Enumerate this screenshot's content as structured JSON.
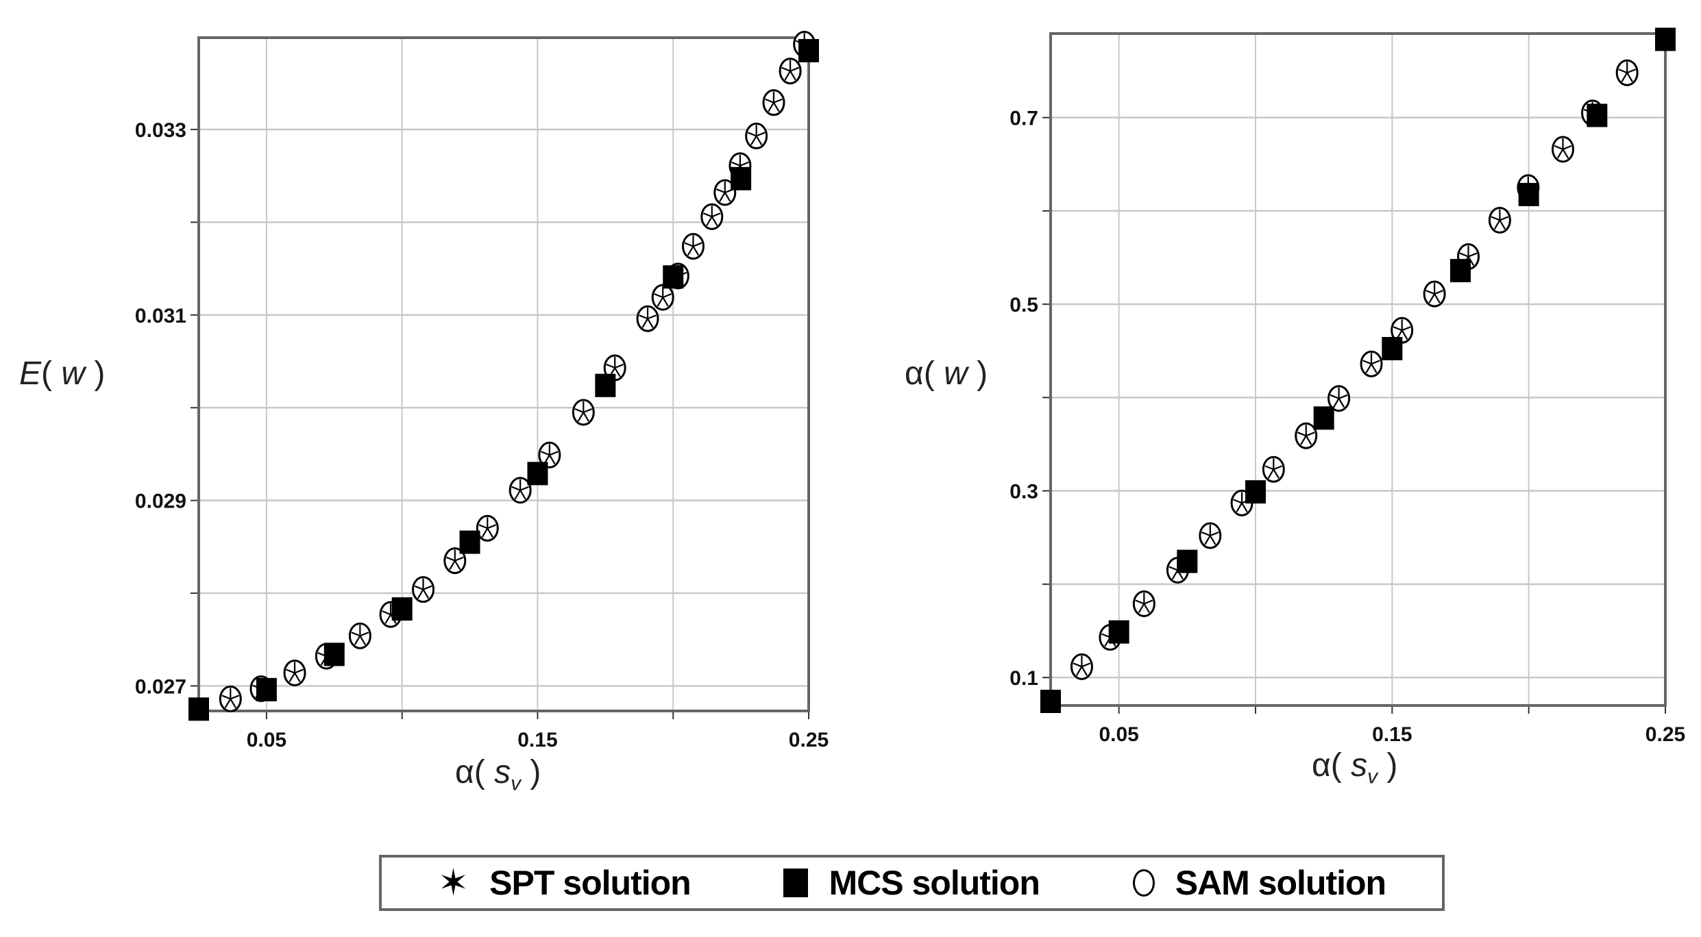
{
  "legend": {
    "items": [
      {
        "symbol": "star",
        "bold": "SPT",
        "rest": " solution"
      },
      {
        "symbol": "square",
        "bold": "MCS",
        "rest": " solution"
      },
      {
        "symbol": "circle",
        "bold": "SAM",
        "rest": " solution"
      }
    ]
  },
  "colors": {
    "marker": "#000000",
    "grid": "#c8c8c8",
    "axis": "#666666"
  },
  "chart_data": [
    {
      "type": "scatter",
      "title": "",
      "xlabel": "α(s_v)",
      "ylabel": "E(w)",
      "xlim": [
        0.025,
        0.25
      ],
      "ylim": [
        0.02673,
        0.03399
      ],
      "grid": true,
      "x_ticks_labeled": [
        "0.05",
        "0.15",
        "0.25"
      ],
      "x_ticks": [
        0.05,
        0.1,
        0.15,
        0.2,
        0.25
      ],
      "y_ticks_labeled": [
        "0.027",
        "0.029",
        "0.031",
        "0.033"
      ],
      "y_ticks": [
        0.027,
        0.028,
        0.029,
        0.03,
        0.031,
        0.032,
        0.033
      ],
      "legend_position": "bottom",
      "series": [
        {
          "name": "MCS solution",
          "marker": "square",
          "x": [
            0.025,
            0.05,
            0.075,
            0.1,
            0.125,
            0.15,
            0.175,
            0.2,
            0.225,
            0.25
          ],
          "y": [
            0.02675,
            0.02696,
            0.02734,
            0.02783,
            0.02855,
            0.02929,
            0.03024,
            0.03141,
            0.03247,
            0.03385
          ]
        },
        {
          "name": "SPT solution",
          "marker": "star",
          "x": [
            0.0367,
            0.048,
            0.0604,
            0.0721,
            0.0845,
            0.0958,
            0.1078,
            0.1195,
            0.1315,
            0.1436,
            0.1544,
            0.1669,
            0.1785,
            0.1906,
            0.1962,
            0.2018,
            0.2074,
            0.2143,
            0.2191,
            0.2247,
            0.2307,
            0.2371,
            0.2432,
            0.2484
          ],
          "y": [
            0.02686,
            0.02697,
            0.02714,
            0.02732,
            0.02754,
            0.02777,
            0.02804,
            0.02835,
            0.0287,
            0.02911,
            0.02949,
            0.02995,
            0.03043,
            0.03096,
            0.03119,
            0.03142,
            0.03174,
            0.03206,
            0.03232,
            0.03261,
            0.03293,
            0.03329,
            0.03363,
            0.03392
          ]
        },
        {
          "name": "SAM solution",
          "marker": "circle",
          "x": [
            0.0367,
            0.048,
            0.0604,
            0.0721,
            0.0845,
            0.0958,
            0.1078,
            0.1195,
            0.1315,
            0.1436,
            0.1544,
            0.1669,
            0.1785,
            0.1906,
            0.1962,
            0.2018,
            0.2074,
            0.2143,
            0.2191,
            0.2247,
            0.2307,
            0.2371,
            0.2432,
            0.2484
          ],
          "y": [
            0.02686,
            0.02697,
            0.02714,
            0.02732,
            0.02754,
            0.02777,
            0.02804,
            0.02835,
            0.0287,
            0.02911,
            0.02949,
            0.02995,
            0.03043,
            0.03096,
            0.03119,
            0.03142,
            0.03174,
            0.03206,
            0.03232,
            0.03261,
            0.03293,
            0.03329,
            0.03363,
            0.03392
          ]
        }
      ]
    },
    {
      "type": "scatter",
      "title": "",
      "xlabel": "α(s_v)",
      "ylabel": "α(w)",
      "xlim": [
        0.025,
        0.25
      ],
      "ylim": [
        0.07,
        0.79
      ],
      "grid": true,
      "x_ticks_labeled": [
        "0.05",
        "0.15",
        "0.25"
      ],
      "x_ticks": [
        0.05,
        0.1,
        0.15,
        0.2,
        0.25
      ],
      "y_ticks_labeled": [
        "0.1",
        "0.3",
        "0.5",
        "0.7"
      ],
      "y_ticks": [
        0.1,
        0.2,
        0.3,
        0.4,
        0.5,
        0.6,
        0.7
      ],
      "legend_position": "bottom",
      "series": [
        {
          "name": "MCS solution",
          "marker": "square",
          "x": [
            0.025,
            0.05,
            0.075,
            0.1,
            0.125,
            0.15,
            0.175,
            0.2,
            0.225,
            0.25
          ],
          "y": [
            0.0744,
            0.1488,
            0.2244,
            0.2989,
            0.378,
            0.4524,
            0.536,
            0.6175,
            0.7023,
            0.7838
          ]
        },
        {
          "name": "SPT solution",
          "marker": "star",
          "x": [
            0.0364,
            0.0468,
            0.0592,
            0.0715,
            0.0834,
            0.095,
            0.1066,
            0.1185,
            0.1305,
            0.1424,
            0.1536,
            0.1655,
            0.1779,
            0.1894,
            0.1998,
            0.2125,
            0.2233,
            0.236
          ],
          "y": [
            0.1116,
            0.143,
            0.179,
            0.215,
            0.252,
            0.287,
            0.323,
            0.359,
            0.399,
            0.436,
            0.472,
            0.511,
            0.551,
            0.59,
            0.625,
            0.666,
            0.705,
            0.748
          ]
        },
        {
          "name": "SAM solution",
          "marker": "circle",
          "x": [
            0.0364,
            0.0468,
            0.0592,
            0.0715,
            0.0834,
            0.095,
            0.1066,
            0.1185,
            0.1305,
            0.1424,
            0.1536,
            0.1655,
            0.1779,
            0.1894,
            0.1998,
            0.2125,
            0.2233,
            0.236
          ],
          "y": [
            0.1116,
            0.143,
            0.179,
            0.215,
            0.252,
            0.287,
            0.323,
            0.359,
            0.399,
            0.436,
            0.472,
            0.511,
            0.551,
            0.59,
            0.625,
            0.666,
            0.705,
            0.748
          ]
        }
      ]
    }
  ]
}
